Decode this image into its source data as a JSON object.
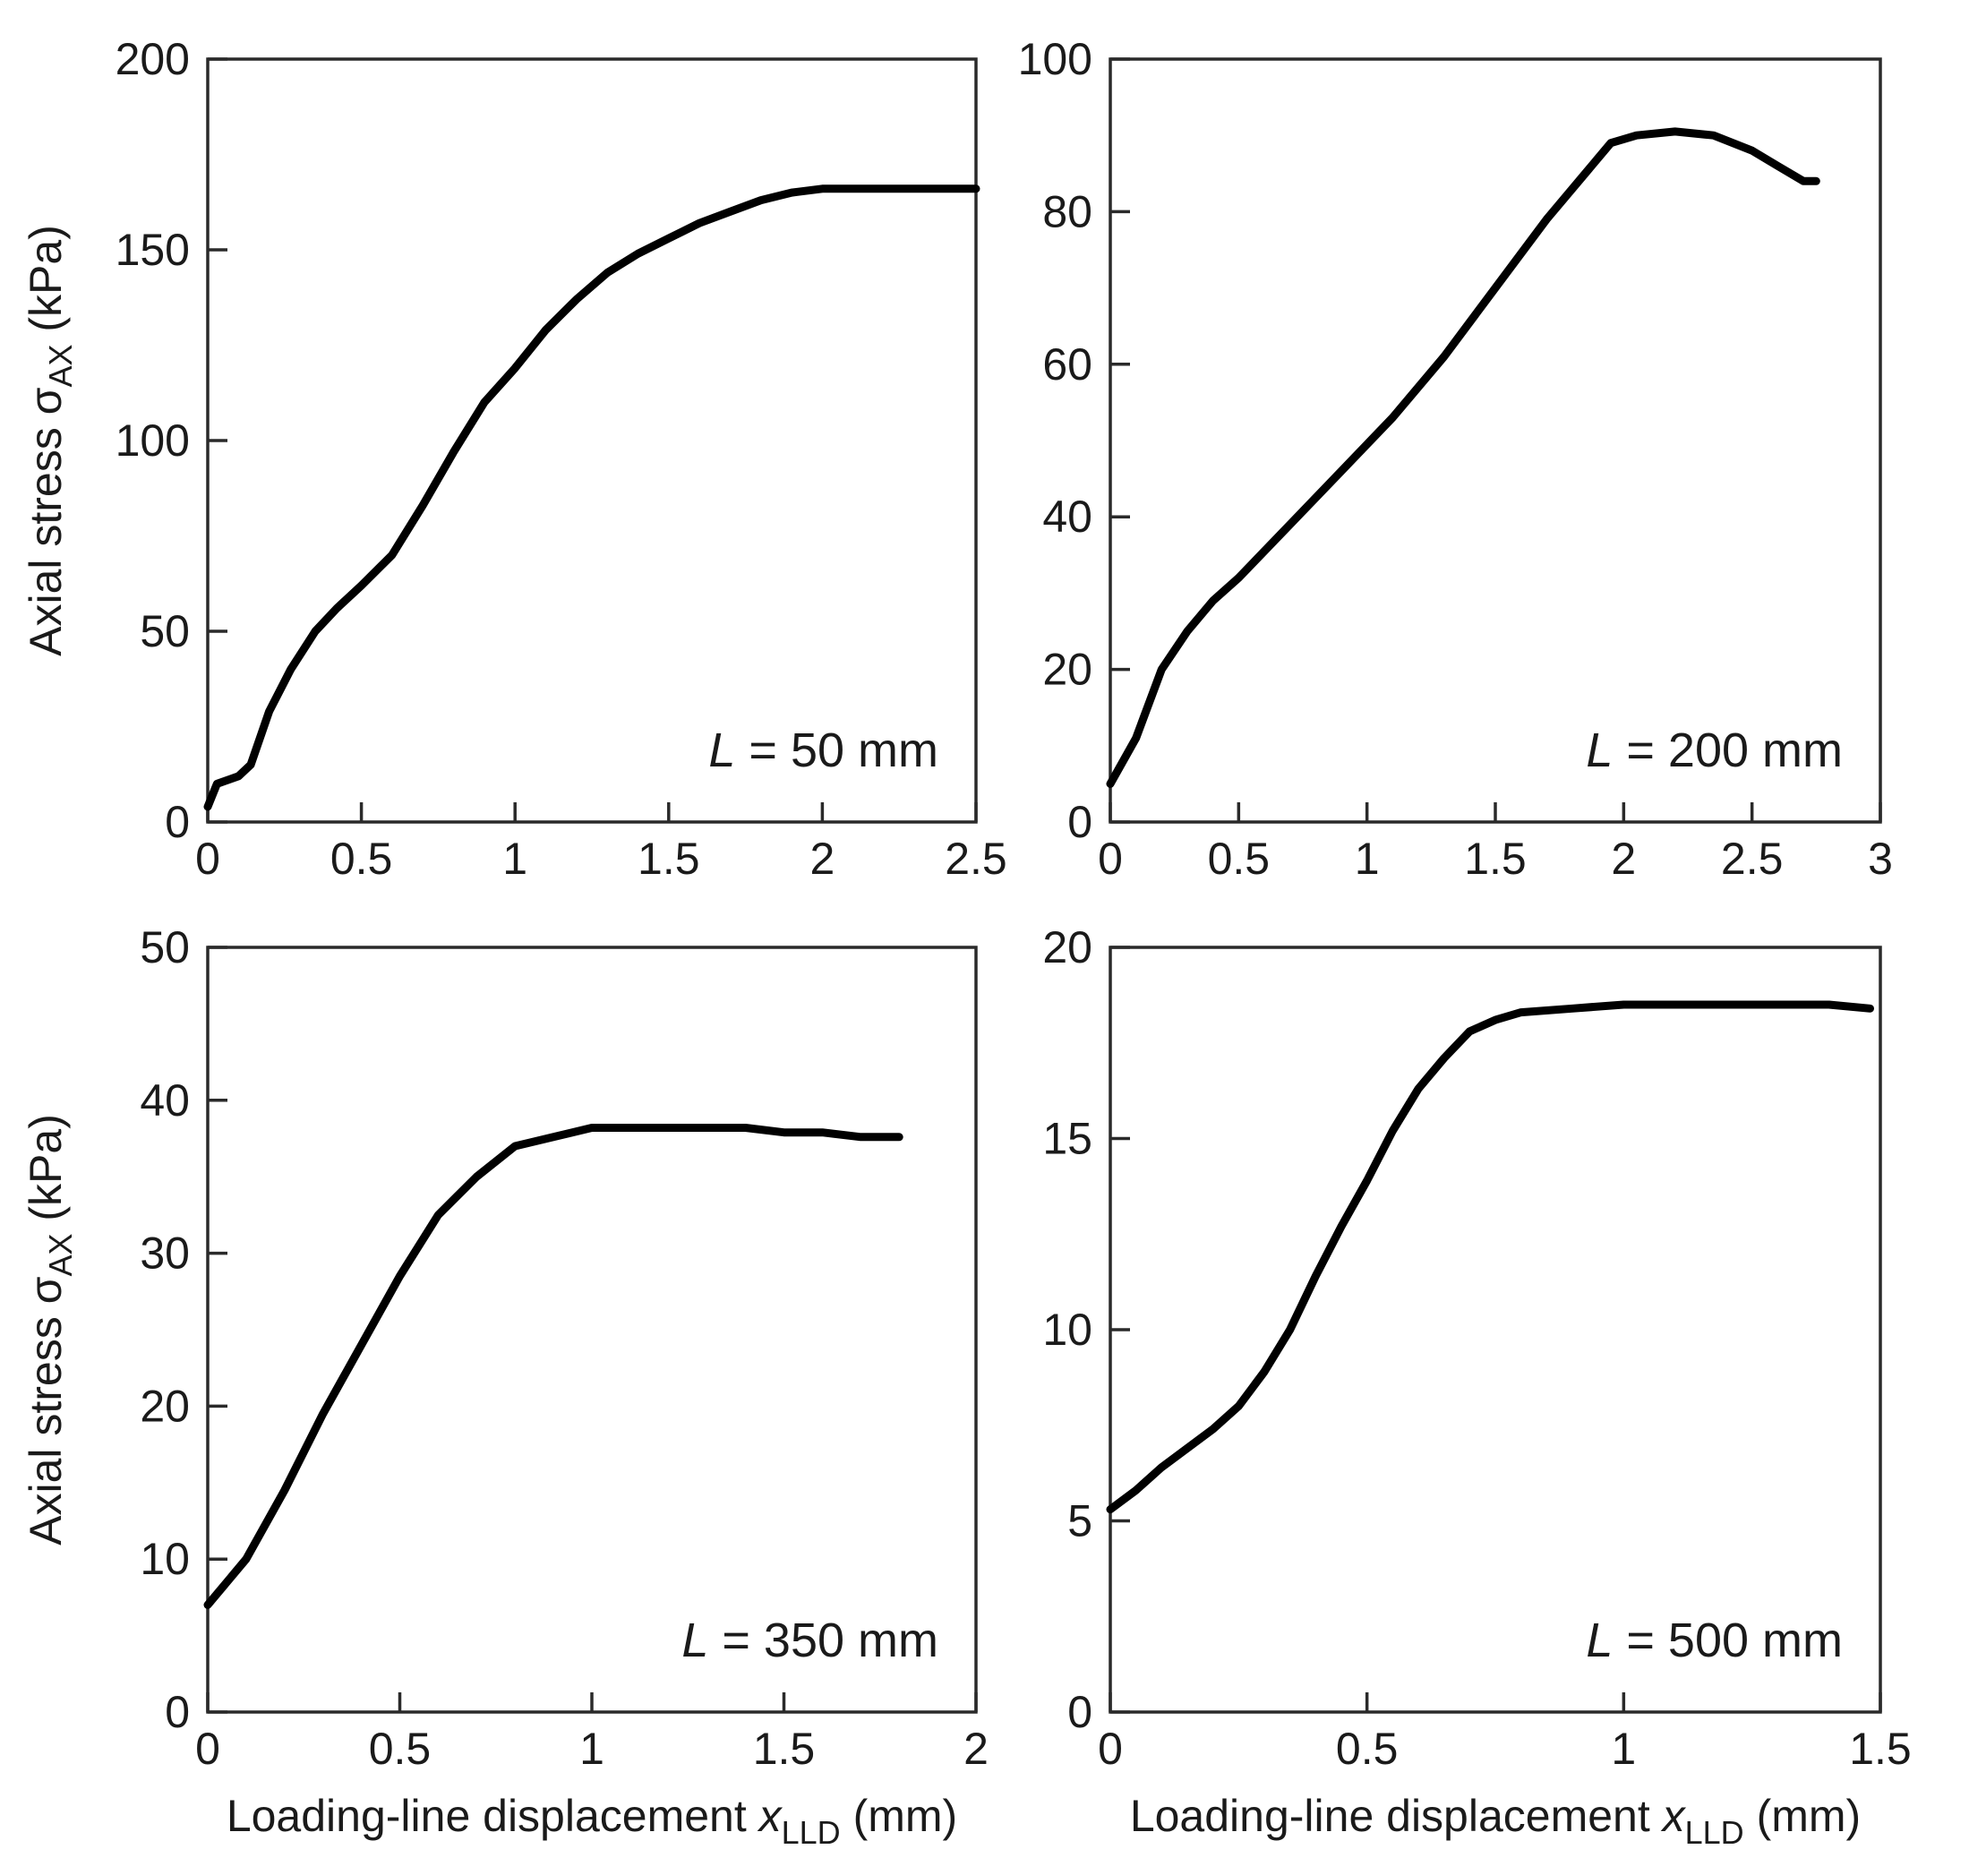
{
  "chart_data": [
    {
      "type": "line",
      "annotation": {
        "italic": "L",
        "rest": " = 50 mm"
      },
      "ylabel": {
        "main": "Axial stress σ",
        "sub": "AX",
        "unit": " (kPa)"
      },
      "xlabel": null,
      "xlim": [
        0,
        2.5
      ],
      "ylim": [
        0,
        200
      ],
      "xticks": [
        "0",
        "0.5",
        "1",
        "1.5",
        "2",
        "2.5"
      ],
      "yticks": [
        "0",
        "50",
        "100",
        "150",
        "200"
      ],
      "series": [
        {
          "x": [
            0,
            0.03,
            0.1,
            0.14,
            0.2,
            0.27,
            0.35,
            0.42,
            0.5,
            0.6,
            0.7,
            0.8,
            0.9,
            1.0,
            1.1,
            1.2,
            1.3,
            1.4,
            1.5,
            1.6,
            1.7,
            1.8,
            1.9,
            2.0,
            2.2,
            2.5
          ],
          "y": [
            4,
            10,
            12,
            15,
            29,
            40,
            50,
            56,
            62,
            70,
            83,
            97,
            110,
            119,
            129,
            137,
            144,
            149,
            153,
            157,
            160,
            163,
            165,
            166,
            166,
            166
          ]
        }
      ]
    },
    {
      "type": "line",
      "annotation": {
        "italic": "L",
        "rest": " = 200 mm"
      },
      "ylabel": null,
      "xlabel": null,
      "xlim": [
        0,
        3
      ],
      "ylim": [
        0,
        100
      ],
      "xticks": [
        "0",
        "0.5",
        "1",
        "1.5",
        "2",
        "2.5",
        "3"
      ],
      "yticks": [
        "0",
        "20",
        "40",
        "60",
        "80",
        "100"
      ],
      "series": [
        {
          "x": [
            0,
            0.1,
            0.2,
            0.3,
            0.4,
            0.5,
            0.7,
            0.9,
            1.1,
            1.3,
            1.5,
            1.7,
            1.85,
            1.95,
            2.05,
            2.2,
            2.35,
            2.5,
            2.6,
            2.7,
            2.75
          ],
          "y": [
            5,
            11,
            20,
            25,
            29,
            32,
            39,
            46,
            53,
            61,
            70,
            79,
            85,
            89,
            90,
            90.5,
            90,
            88,
            86,
            84,
            84
          ]
        }
      ]
    },
    {
      "type": "line",
      "annotation": {
        "italic": "L",
        "rest": " = 350 mm"
      },
      "ylabel": {
        "main": "Axial stress σ",
        "sub": "AX",
        "unit": " (kPa)"
      },
      "xlabel": {
        "main": "Loading-line displacement ",
        "var": "x",
        "sub": "LLD",
        "unit": " (mm)"
      },
      "xlim": [
        0,
        2
      ],
      "ylim": [
        0,
        50
      ],
      "xticks": [
        "0",
        "0.5",
        "1",
        "1.5",
        "2"
      ],
      "yticks": [
        "0",
        "10",
        "20",
        "30",
        "40",
        "50"
      ],
      "series": [
        {
          "x": [
            0,
            0.1,
            0.2,
            0.3,
            0.4,
            0.5,
            0.6,
            0.7,
            0.8,
            0.9,
            1.0,
            1.2,
            1.4,
            1.5,
            1.6,
            1.7,
            1.8
          ],
          "y": [
            7,
            10,
            14.5,
            19.5,
            24,
            28.5,
            32.5,
            35,
            37,
            37.6,
            38.2,
            38.2,
            38.2,
            37.9,
            37.9,
            37.6,
            37.6
          ]
        }
      ]
    },
    {
      "type": "line",
      "annotation": {
        "italic": "L",
        "rest": " = 500 mm"
      },
      "ylabel": null,
      "xlabel": {
        "main": "Loading-line displacement ",
        "var": "x",
        "sub": "LLD",
        "unit": " (mm)"
      },
      "xlim": [
        0,
        1.5
      ],
      "ylim": [
        0,
        20
      ],
      "xticks": [
        "0",
        "0.5",
        "1",
        "1.5"
      ],
      "yticks": [
        "0",
        "5",
        "10",
        "15",
        "20"
      ],
      "series": [
        {
          "x": [
            0,
            0.05,
            0.1,
            0.15,
            0.2,
            0.25,
            0.3,
            0.35,
            0.4,
            0.45,
            0.5,
            0.55,
            0.6,
            0.65,
            0.7,
            0.75,
            0.8,
            0.9,
            1.0,
            1.2,
            1.4,
            1.48
          ],
          "y": [
            5.3,
            5.8,
            6.4,
            6.9,
            7.4,
            8.0,
            8.9,
            10.0,
            11.4,
            12.7,
            13.9,
            15.2,
            16.3,
            17.1,
            17.8,
            18.1,
            18.3,
            18.4,
            18.5,
            18.5,
            18.5,
            18.4
          ]
        }
      ]
    }
  ]
}
